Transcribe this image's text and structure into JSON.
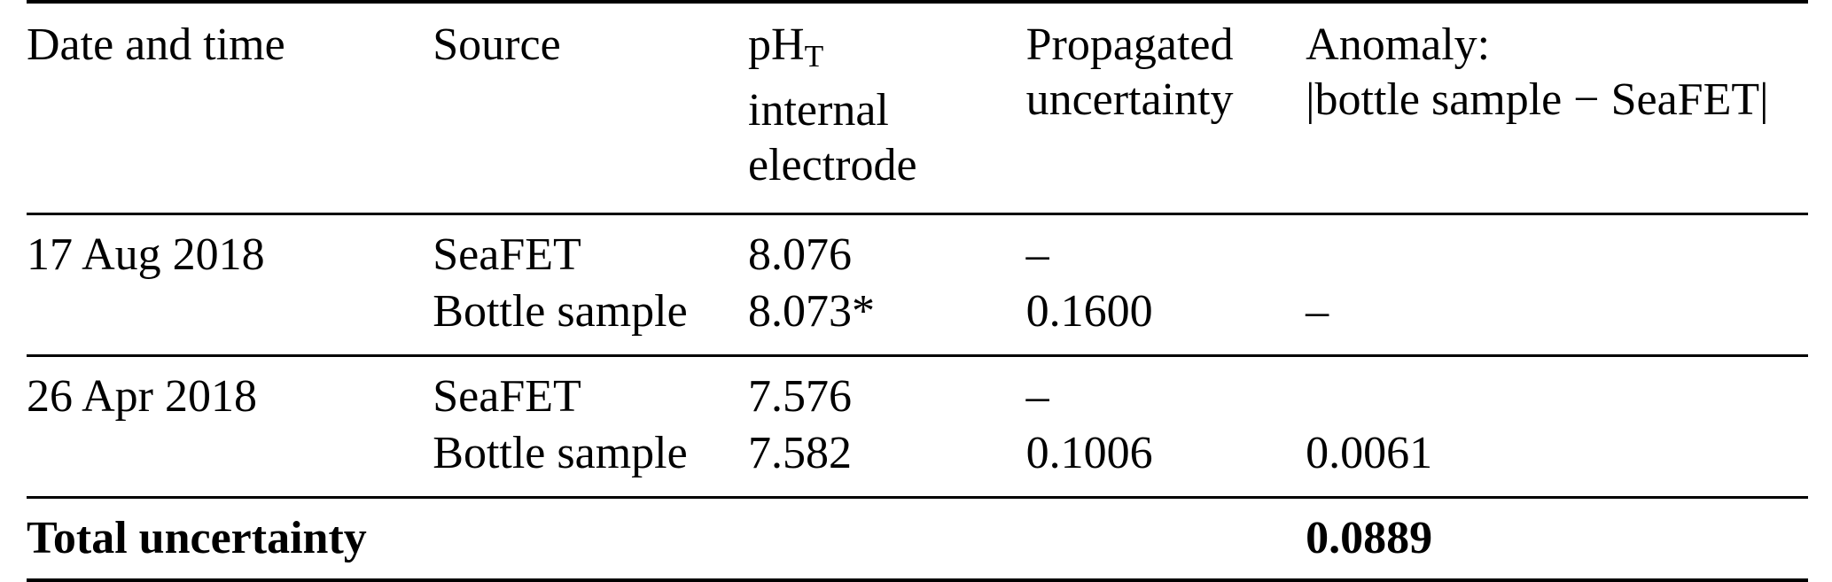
{
  "header": {
    "date": "Date and time",
    "source": "Source",
    "ph_base": "pH",
    "ph_sub": "T",
    "ph_line2": "internal",
    "ph_line3": "electrode",
    "uncertainty_line1": "Propagated",
    "uncertainty_line2": "uncertainty",
    "anomaly_line1": "Anomaly:",
    "anomaly_line2": "|bottle sample − SeaFET|"
  },
  "rows": [
    {
      "date": "17 Aug 2018",
      "source": "SeaFET",
      "ph": "8.076",
      "uncertainty": "–",
      "anomaly": ""
    },
    {
      "date": "",
      "source": "Bottle sample",
      "ph": "8.073*",
      "uncertainty": "0.1600",
      "anomaly": "–"
    },
    {
      "date": "26 Apr 2018",
      "source": "SeaFET",
      "ph": "7.576",
      "uncertainty": "–",
      "anomaly": ""
    },
    {
      "date": "",
      "source": "Bottle sample",
      "ph": "7.582",
      "uncertainty": "0.1006",
      "anomaly": "0.0061"
    }
  ],
  "footer": {
    "label": "Total uncertainty",
    "value": "0.0889"
  },
  "colors": {
    "text": "#000000",
    "background": "#ffffff",
    "rule": "#000000"
  },
  "chart_data": {
    "type": "table",
    "title": "",
    "columns": [
      "Date and time",
      "Source",
      "pH_T internal electrode",
      "Propagated uncertainty",
      "Anomaly: |bottle sample − SeaFET|"
    ],
    "rows": [
      [
        "17 Aug 2018",
        "SeaFET",
        "8.076",
        "–",
        ""
      ],
      [
        "",
        "Bottle sample",
        "8.073*",
        "0.1600",
        "–"
      ],
      [
        "26 Apr 2018",
        "SeaFET",
        "7.576",
        "–",
        ""
      ],
      [
        "",
        "Bottle sample",
        "7.582",
        "0.1006",
        "0.0061"
      ],
      [
        "Total uncertainty",
        "",
        "",
        "",
        "0.0889"
      ]
    ]
  }
}
